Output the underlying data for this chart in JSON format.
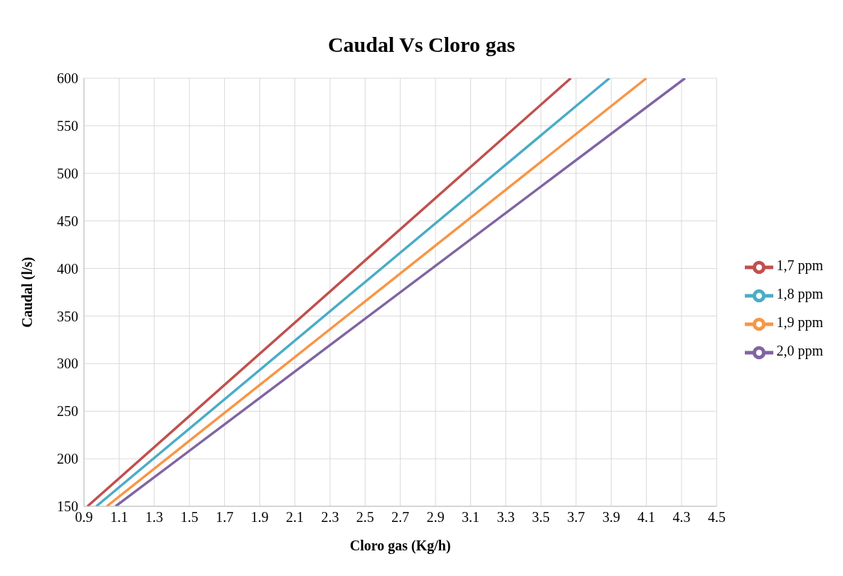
{
  "chart_data": {
    "type": "line",
    "title": "Caudal Vs Cloro gas",
    "xlabel": "Cloro gas (Kg/h)",
    "ylabel": "Caudal (l/s)",
    "xlim": [
      0.9,
      4.5
    ],
    "xticks": [
      0.9,
      1.1,
      1.3,
      1.5,
      1.7,
      1.9,
      2.1,
      2.3,
      2.5,
      2.7,
      2.9,
      3.1,
      3.3,
      3.5,
      3.7,
      3.9,
      4.1,
      4.3,
      4.5
    ],
    "ylim": [
      150,
      600
    ],
    "yticks": [
      150,
      200,
      250,
      300,
      350,
      400,
      450,
      500,
      550,
      600
    ],
    "grid": true,
    "legend": "right",
    "marker": "none",
    "line_style": "solid",
    "series": [
      {
        "name": "1,7 ppm",
        "color": "#c0504d",
        "x": [
          0.92,
          3.67
        ],
        "values": [
          150,
          600
        ]
      },
      {
        "name": "1,8 ppm",
        "color": "#4bacc6",
        "x": [
          0.97,
          3.89
        ],
        "values": [
          150,
          600
        ]
      },
      {
        "name": "1,9 ppm",
        "color": "#f79646",
        "x": [
          1.03,
          4.1
        ],
        "values": [
          150,
          600
        ]
      },
      {
        "name": "2,0 ppm",
        "color": "#8064a2",
        "x": [
          1.08,
          4.32
        ],
        "values": [
          150,
          600
        ]
      }
    ]
  }
}
